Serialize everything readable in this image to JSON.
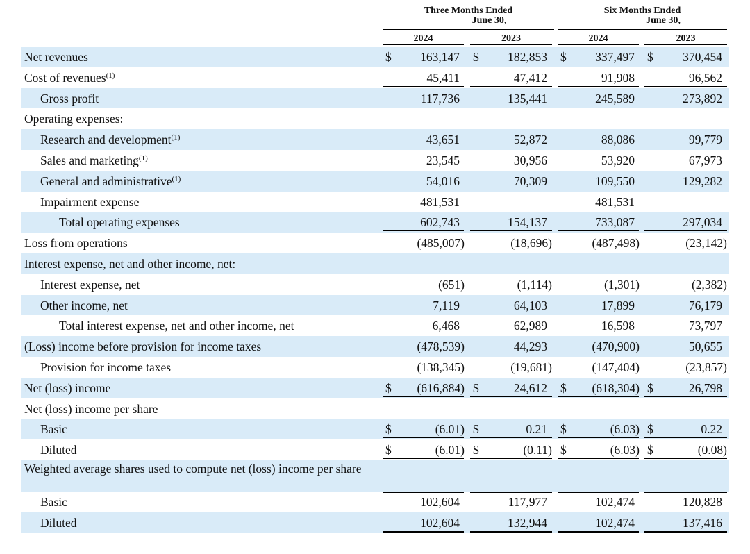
{
  "header": {
    "groups": [
      {
        "line1": "Three Months Ended",
        "line2": "June 30,"
      },
      {
        "line1": "Six Months Ended",
        "line2": "June 30,"
      }
    ],
    "years": [
      "2024",
      "2023",
      "2024",
      "2023"
    ]
  },
  "table": {
    "rows": [
      {
        "label": "Net revenues",
        "currency": "$",
        "cells": [
          "163,147",
          "182,853",
          "337,497",
          "370,454"
        ]
      },
      {
        "label": "Cost of revenues",
        "note": "(1)",
        "cells": [
          "45,411",
          "47,412",
          "91,908",
          "96,562"
        ]
      },
      {
        "label": "Gross profit",
        "cells": [
          "117,736",
          "135,441",
          "245,589",
          "273,892"
        ]
      },
      {
        "label": "Operating expenses:"
      },
      {
        "label": "Research and development",
        "note": "(1)",
        "cells": [
          "43,651",
          "52,872",
          "88,086",
          "99,779"
        ]
      },
      {
        "label": "Sales and marketing",
        "note": "(1)",
        "cells": [
          "23,545",
          "30,956",
          "53,920",
          "67,973"
        ]
      },
      {
        "label": "General and administrative",
        "note": "(1)",
        "cells": [
          "54,016",
          "70,309",
          "109,550",
          "129,282"
        ]
      },
      {
        "label": "Impairment expense",
        "cells": [
          "481,531",
          "—",
          "481,531",
          "—"
        ]
      },
      {
        "label": "Total operating expenses",
        "cells": [
          "602,743",
          "154,137",
          "733,087",
          "297,034"
        ]
      },
      {
        "label": "Loss from operations",
        "cells": [
          "(485,007)",
          "(18,696)",
          "(487,498)",
          "(23,142)"
        ]
      },
      {
        "label": "Interest expense, net and other income, net:"
      },
      {
        "label": "Interest expense, net",
        "cells": [
          "(651)",
          "(1,114)",
          "(1,301)",
          "(2,382)"
        ]
      },
      {
        "label": "Other income, net",
        "cells": [
          "7,119",
          "64,103",
          "17,899",
          "76,179"
        ]
      },
      {
        "label": "Total interest expense, net and other income, net",
        "cells": [
          "6,468",
          "62,989",
          "16,598",
          "73,797"
        ]
      },
      {
        "label": "(Loss) income before provision for income taxes",
        "cells": [
          "(478,539)",
          "44,293",
          "(470,900)",
          "50,655"
        ]
      },
      {
        "label": "Provision for income taxes",
        "cells": [
          "(138,345)",
          "(19,681)",
          "(147,404)",
          "(23,857)"
        ]
      },
      {
        "label": "Net (loss) income",
        "currency": "$",
        "cells": [
          "(616,884)",
          "24,612",
          "(618,304)",
          "26,798"
        ]
      },
      {
        "label": "Net (loss) income per share"
      },
      {
        "label": "Basic",
        "currency": "$",
        "cells": [
          "(6.01)",
          "0.21",
          "(6.03)",
          "0.22"
        ]
      },
      {
        "label": "Diluted",
        "currency": "$",
        "cells": [
          "(6.01)",
          "(0.11)",
          "(6.03)",
          "(0.08)"
        ]
      },
      {
        "label": "Weighted average shares used to compute net (loss) income per share"
      },
      {
        "label": "Basic",
        "cells": [
          "102,604",
          "117,977",
          "102,474",
          "120,828"
        ]
      },
      {
        "label": "Diluted",
        "cells": [
          "102,604",
          "132,944",
          "102,474",
          "137,416"
        ]
      }
    ]
  }
}
